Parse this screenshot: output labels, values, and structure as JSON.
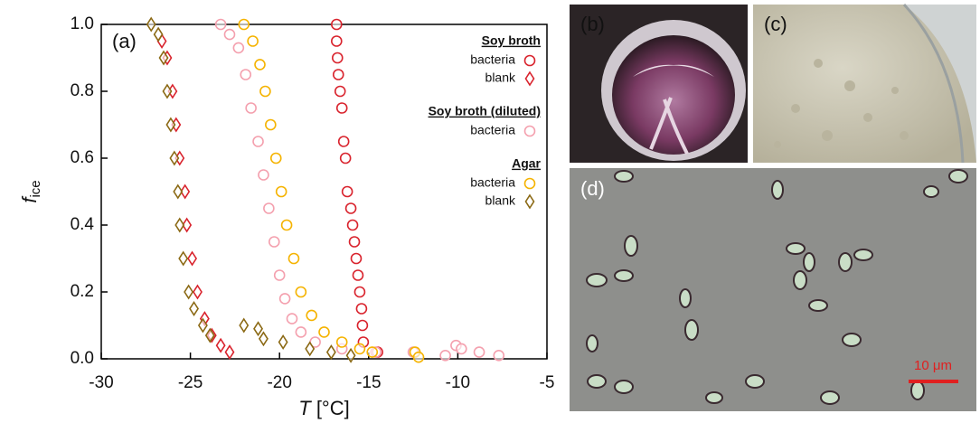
{
  "chart_data": {
    "type": "scatter",
    "panel_label": "(a)",
    "xlabel": {
      "symbol": "T",
      "unit": " [°C]"
    },
    "ylabel": {
      "symbol": "f",
      "subscript": "ice"
    },
    "xlim": [
      -30,
      -5
    ],
    "xticks": [
      -30,
      -25,
      -20,
      -15,
      -10,
      -5
    ],
    "ylim": [
      0,
      1
    ],
    "yticks": [
      {
        "value": 0,
        "label": "0.0"
      },
      0.2,
      0.4,
      0.6,
      0.8,
      {
        "value": 1,
        "label": "1.0"
      }
    ],
    "legend_groups": [
      {
        "title": "Soy broth",
        "entries": [
          0,
          1
        ]
      },
      {
        "title": "Soy broth (diluted)",
        "entries": [
          2
        ]
      },
      {
        "title": "Agar",
        "entries": [
          3,
          4
        ]
      }
    ],
    "series": [
      {
        "name": "bacteria",
        "color": "#d9232d",
        "marker": "circle",
        "x": [
          -16.8,
          -16.8,
          -16.75,
          -16.7,
          -16.6,
          -16.5,
          -16.4,
          -16.3,
          -16.2,
          -16.0,
          -15.9,
          -15.8,
          -15.7,
          -15.6,
          -15.5,
          -15.4,
          -15.35,
          -15.3,
          -14.5
        ],
        "y": [
          1.0,
          0.95,
          0.9,
          0.85,
          0.8,
          0.75,
          0.65,
          0.6,
          0.5,
          0.45,
          0.4,
          0.35,
          0.3,
          0.25,
          0.2,
          0.15,
          0.1,
          0.05,
          0.02
        ]
      },
      {
        "name": "blank",
        "color": "#d9232d",
        "marker": "diamond",
        "x": [
          -26.6,
          -26.3,
          -26.0,
          -25.8,
          -25.6,
          -25.3,
          -25.2,
          -24.9,
          -24.6,
          -24.2,
          -23.8,
          -23.3,
          -22.8
        ],
        "y": [
          0.95,
          0.9,
          0.8,
          0.7,
          0.6,
          0.5,
          0.4,
          0.3,
          0.2,
          0.12,
          0.07,
          0.04,
          0.02
        ]
      },
      {
        "name": "bacteria",
        "color": "#f4a0ae",
        "marker": "circle",
        "x": [
          -23.3,
          -22.8,
          -22.3,
          -21.9,
          -21.6,
          -21.2,
          -20.9,
          -20.6,
          -20.3,
          -20.0,
          -19.7,
          -19.3,
          -18.8,
          -18.0,
          -16.5,
          -14.6,
          -12.5,
          -10.7,
          -10.1,
          -9.8,
          -8.8,
          -7.7
        ],
        "y": [
          1.0,
          0.97,
          0.93,
          0.85,
          0.75,
          0.65,
          0.55,
          0.45,
          0.35,
          0.25,
          0.18,
          0.12,
          0.08,
          0.05,
          0.03,
          0.02,
          0.02,
          0.01,
          0.04,
          0.03,
          0.02,
          0.01
        ]
      },
      {
        "name": "bacteria",
        "color": "#f5b300",
        "marker": "circle",
        "x": [
          -22.0,
          -21.5,
          -21.1,
          -20.8,
          -20.5,
          -20.2,
          -19.9,
          -19.6,
          -19.2,
          -18.8,
          -18.2,
          -17.5,
          -16.5,
          -15.5,
          -14.8,
          -12.4,
          -12.2
        ],
        "y": [
          1.0,
          0.95,
          0.88,
          0.8,
          0.7,
          0.6,
          0.5,
          0.4,
          0.3,
          0.2,
          0.13,
          0.08,
          0.05,
          0.03,
          0.02,
          0.02,
          0.005
        ]
      },
      {
        "name": "blank",
        "color": "#8b6914",
        "marker": "diamond",
        "x": [
          -27.2,
          -26.8,
          -26.5,
          -26.3,
          -26.1,
          -25.9,
          -25.7,
          -25.6,
          -25.4,
          -25.1,
          -24.8,
          -24.3,
          -23.9,
          -22.0,
          -21.2,
          -20.9,
          -19.8,
          -18.3,
          -17.1,
          -16.0
        ],
        "y": [
          1.0,
          0.97,
          0.9,
          0.8,
          0.7,
          0.6,
          0.5,
          0.4,
          0.3,
          0.2,
          0.15,
          0.1,
          0.07,
          0.1,
          0.09,
          0.06,
          0.05,
          0.03,
          0.02,
          0.01
        ]
      }
    ]
  },
  "images": [
    {
      "label": "(b)"
    },
    {
      "label": "(c)"
    },
    {
      "label": "(d)",
      "scale_bar": "10 μm"
    }
  ]
}
